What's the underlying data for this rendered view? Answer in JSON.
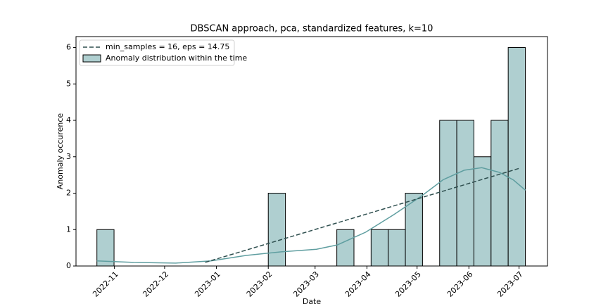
{
  "chart_data": {
    "type": "histogram",
    "title": "DBSCAN approach, pca, standardized features, k=10",
    "xlabel": "Date",
    "ylabel": "Anomaly occurence",
    "xlim": [
      19274,
      19556
    ],
    "ylim": [
      0,
      6.3
    ],
    "xticks": [
      {
        "value": 19297,
        "label": "2022-11"
      },
      {
        "value": 19327,
        "label": "2022-12"
      },
      {
        "value": 19358,
        "label": "2023-01"
      },
      {
        "value": 19389,
        "label": "2023-02"
      },
      {
        "value": 19417,
        "label": "2023-03"
      },
      {
        "value": 19448,
        "label": "2023-04"
      },
      {
        "value": 19478,
        "label": "2023-05"
      },
      {
        "value": 19509,
        "label": "2023-06"
      },
      {
        "value": 19539,
        "label": "2023-07"
      }
    ],
    "yticks": [
      0,
      1,
      2,
      3,
      4,
      5,
      6
    ],
    "legend": "upper left",
    "histogram": {
      "name": "Anomaly distribution within the time",
      "color": "#afcfd0",
      "edgecolor": "#000000",
      "bins": [
        19286.5,
        19296.75,
        19307,
        19317.25,
        19327.5,
        19337.75,
        19348,
        19358.25,
        19368.5,
        19378.75,
        19389,
        19399.25,
        19409.5,
        19419.75,
        19430,
        19440.25,
        19450.5,
        19460.75,
        19471,
        19481.25,
        19491.5,
        19501.75,
        19512,
        19522.25,
        19532.5,
        19542.75
      ],
      "counts": [
        1,
        0,
        0,
        0,
        0,
        0,
        0,
        0,
        0,
        0,
        2,
        0,
        0,
        0,
        1,
        0,
        1,
        1,
        2,
        0,
        4,
        4,
        3,
        4,
        6
      ]
    },
    "lines": [
      {
        "color": "#5f9ea0",
        "style": "solid",
        "x": [
          19286.5,
          19308.4,
          19333.6,
          19354.7,
          19375.7,
          19396.7,
          19417.8,
          19430.4,
          19447.3,
          19464.1,
          19480.9,
          19493.6,
          19506.2,
          19516.7,
          19527.3,
          19535.7,
          19542.8
        ],
        "values": [
          0.14,
          0.1,
          0.08,
          0.14,
          0.29,
          0.39,
          0.46,
          0.58,
          0.93,
          1.41,
          1.93,
          2.37,
          2.63,
          2.7,
          2.57,
          2.36,
          2.08
        ]
      },
      {
        "name": "min_samples = 16, eps = 14.75",
        "color": "#2f4f4f",
        "style": "dashed",
        "x": [
          19351.3,
          19539
        ],
        "values": [
          0.1,
          2.68
        ]
      }
    ]
  }
}
